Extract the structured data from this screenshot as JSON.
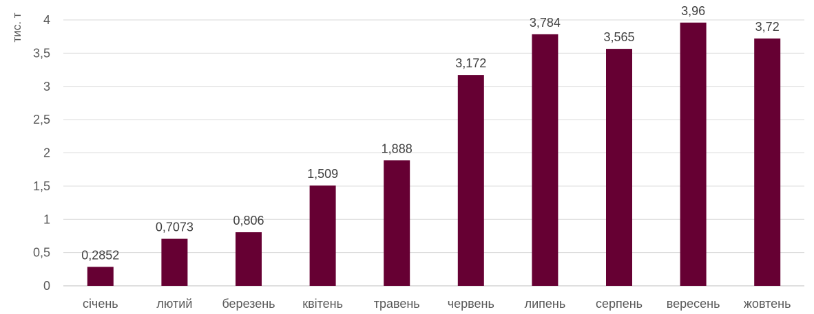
{
  "chart_data": {
    "type": "bar",
    "title": "",
    "xlabel": "",
    "ylabel": "тис. т",
    "categories": [
      "січень",
      "лютий",
      "березень",
      "квітень",
      "травень",
      "червень",
      "липень",
      "серпень",
      "вересень",
      "жовтень"
    ],
    "values": [
      0.2852,
      0.7073,
      0.806,
      1.509,
      1.888,
      3.172,
      3.784,
      3.565,
      3.96,
      3.72
    ],
    "data_labels": [
      "0,2852",
      "0,7073",
      "0,806",
      "1,509",
      "1,888",
      "3,172",
      "3,784",
      "3,565",
      "3,96",
      "3,72"
    ],
    "ylim": [
      0,
      4
    ],
    "yticks": [
      0,
      0.5,
      1,
      1.5,
      2,
      2.5,
      3,
      3.5,
      4
    ],
    "ytick_labels": [
      "0",
      "0,5",
      "1",
      "1,5",
      "2",
      "2,5",
      "3",
      "3,5",
      "4"
    ],
    "grid": true,
    "legend": "none",
    "bar_color": "#660033"
  }
}
